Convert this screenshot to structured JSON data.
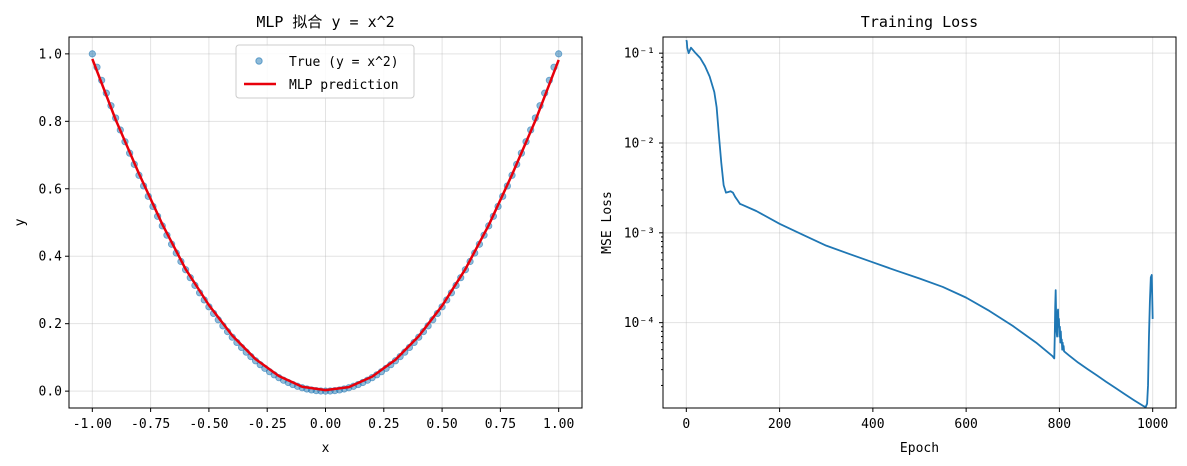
{
  "colors": {
    "scatter": "#1f77b4",
    "prediction": "#e8000b",
    "loss": "#1f77b4"
  },
  "chart_data": [
    {
      "type": "scatter",
      "title": "MLP 拟合 y = x^2",
      "xlabel": "x",
      "ylabel": "y",
      "xlim": [
        -1.1,
        1.1
      ],
      "ylim": [
        -0.05,
        1.05
      ],
      "grid": true,
      "legend_position": "top-center",
      "x_ticks": [
        "-1.00",
        "-0.75",
        "-0.50",
        "-0.25",
        "0.00",
        "0.25",
        "0.50",
        "0.75",
        "1.00"
      ],
      "y_ticks": [
        "0.0",
        "0.2",
        "0.4",
        "0.6",
        "0.8",
        "1.0"
      ],
      "series": [
        {
          "name": "True (y = x^2)",
          "kind": "scatter",
          "x": [
            -1.0,
            -0.98,
            -0.96,
            -0.94,
            -0.92,
            -0.9,
            -0.88,
            -0.86,
            -0.84,
            -0.82,
            -0.8,
            -0.78,
            -0.76,
            -0.74,
            -0.72,
            -0.7,
            -0.68,
            -0.66,
            -0.64,
            -0.62,
            -0.6,
            -0.58,
            -0.56,
            -0.54,
            -0.52,
            -0.5,
            -0.48,
            -0.46,
            -0.44,
            -0.42,
            -0.4,
            -0.38,
            -0.36,
            -0.34,
            -0.32,
            -0.3,
            -0.28,
            -0.26,
            -0.24,
            -0.22,
            -0.2,
            -0.18,
            -0.16,
            -0.14,
            -0.12,
            -0.1,
            -0.08,
            -0.06,
            -0.04,
            -0.02,
            0.0,
            0.02,
            0.04,
            0.06,
            0.08,
            0.1,
            0.12,
            0.14,
            0.16,
            0.18,
            0.2,
            0.22,
            0.24,
            0.26,
            0.28,
            0.3,
            0.32,
            0.34,
            0.36,
            0.38,
            0.4,
            0.42,
            0.44,
            0.46,
            0.48,
            0.5,
            0.52,
            0.54,
            0.56,
            0.58,
            0.6,
            0.62,
            0.64,
            0.66,
            0.68,
            0.7,
            0.72,
            0.74,
            0.76,
            0.78,
            0.8,
            0.82,
            0.84,
            0.86,
            0.88,
            0.9,
            0.92,
            0.94,
            0.96,
            0.98,
            1.0
          ],
          "y": [
            1.0,
            0.9604,
            0.9216,
            0.8836,
            0.8464,
            0.81,
            0.7744,
            0.7396,
            0.7056,
            0.6724,
            0.64,
            0.6084,
            0.5776,
            0.5476,
            0.5184,
            0.49,
            0.4624,
            0.4356,
            0.4096,
            0.3844,
            0.36,
            0.3364,
            0.3136,
            0.2916,
            0.2704,
            0.25,
            0.2304,
            0.2116,
            0.1936,
            0.1764,
            0.16,
            0.1444,
            0.1296,
            0.1156,
            0.1024,
            0.09,
            0.0784,
            0.0676,
            0.0576,
            0.0484,
            0.04,
            0.0324,
            0.0256,
            0.0196,
            0.0144,
            0.01,
            0.0064,
            0.0036,
            0.0016,
            0.0004,
            0.0,
            0.0004,
            0.0016,
            0.0036,
            0.0064,
            0.01,
            0.0144,
            0.0196,
            0.0256,
            0.0324,
            0.04,
            0.0484,
            0.0576,
            0.0676,
            0.0784,
            0.09,
            0.1024,
            0.1156,
            0.1296,
            0.1444,
            0.16,
            0.1764,
            0.1936,
            0.2116,
            0.2304,
            0.25,
            0.2704,
            0.2916,
            0.3136,
            0.3364,
            0.36,
            0.3844,
            0.4096,
            0.4356,
            0.4624,
            0.49,
            0.5184,
            0.5476,
            0.5776,
            0.6084,
            0.64,
            0.6724,
            0.7056,
            0.7396,
            0.7744,
            0.81,
            0.8464,
            0.8836,
            0.9216,
            0.9604,
            1.0
          ]
        },
        {
          "name": "MLP prediction",
          "kind": "line",
          "x": [
            -1.0,
            -0.9,
            -0.8,
            -0.7,
            -0.6,
            -0.5,
            -0.4,
            -0.3,
            -0.2,
            -0.1,
            0.0,
            0.1,
            0.2,
            0.3,
            0.4,
            0.5,
            0.6,
            0.7,
            0.8,
            0.9,
            1.0
          ],
          "y": [
            0.985,
            0.805,
            0.645,
            0.495,
            0.362,
            0.255,
            0.165,
            0.095,
            0.045,
            0.013,
            0.003,
            0.012,
            0.043,
            0.093,
            0.163,
            0.253,
            0.362,
            0.492,
            0.642,
            0.802,
            0.982
          ]
        }
      ]
    },
    {
      "type": "line",
      "title": "Training Loss",
      "xlabel": "Epoch",
      "ylabel": "MSE Loss",
      "yscale": "log",
      "xlim": [
        -50,
        1050
      ],
      "ylim_log10": [
        -4.95,
        -0.82
      ],
      "grid": true,
      "x_ticks": [
        "0",
        "200",
        "400",
        "600",
        "800",
        "1000"
      ],
      "y_tick_values": [
        -1,
        -2,
        -3,
        -4
      ],
      "y_ticks": [
        "10⁻¹",
        "10⁻²",
        "10⁻³",
        "10⁻⁴"
      ],
      "series": [
        {
          "x": [
            0,
            1,
            2,
            5,
            10,
            20,
            30,
            40,
            50,
            60,
            65,
            70,
            75,
            80,
            85,
            90,
            95,
            100,
            105,
            110,
            115,
            120,
            150,
            200,
            250,
            300,
            350,
            400,
            450,
            500,
            550,
            600,
            650,
            700,
            750,
            785,
            789,
            790,
            791,
            792,
            793,
            794,
            795,
            796,
            797,
            798,
            799,
            800,
            801,
            802,
            803,
            804,
            805,
            806,
            807,
            808,
            809,
            810,
            820,
            840,
            860,
            880,
            900,
            920,
            940,
            960,
            980,
            985,
            988,
            990,
            992,
            994,
            996,
            998,
            1000
          ],
          "y": [
            0.14,
            0.135,
            0.115,
            0.1,
            0.115,
            0.1,
            0.088,
            0.072,
            0.055,
            0.037,
            0.025,
            0.012,
            0.006,
            0.0034,
            0.0028,
            0.00285,
            0.0029,
            0.0028,
            0.0025,
            0.0023,
            0.0021,
            0.00205,
            0.00175,
            0.00126,
            0.00095,
            0.00072,
            0.00058,
            0.00047,
            0.00038,
            0.00031,
            0.00025,
            0.00019,
            0.000135,
            9.2e-05,
            6e-05,
            4.25e-05,
            4e-05,
            7e-05,
            0.00015,
            0.00023,
            0.00012,
            8e-05,
            7e-05,
            0.00012,
            0.00014,
            9e-05,
            0.00011,
            7e-05,
            9e-05,
            6e-05,
            8e-05,
            6e-05,
            6.5e-05,
            5e-05,
            6e-05,
            5e-05,
            5.5e-05,
            4.8e-05,
            4.35e-05,
            3.6e-05,
            3.05e-05,
            2.6e-05,
            2.2e-05,
            1.88e-05,
            1.6e-05,
            1.37e-05,
            1.18e-05,
            1.15e-05,
            1.25e-05,
            2e-05,
            7e-05,
            0.00017,
            0.00032,
            0.00034,
            0.00011
          ]
        }
      ]
    }
  ]
}
